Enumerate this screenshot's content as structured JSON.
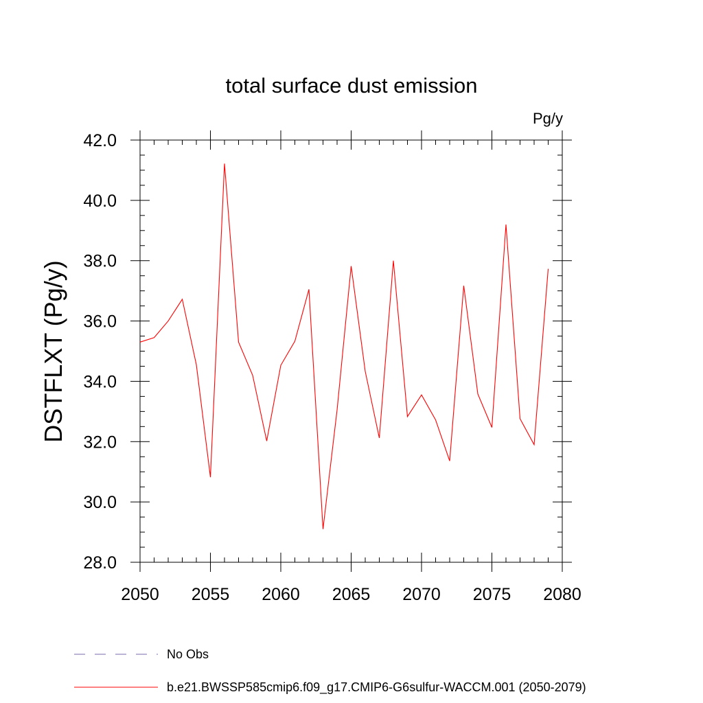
{
  "chart_data": {
    "type": "line",
    "title": "total surface dust emission",
    "units_label": "Pg/y",
    "ylabel": "DSTFLXT  (Pg/y)",
    "xlabel": "",
    "xlim": [
      2050,
      2080
    ],
    "ylim": [
      28.0,
      42.0
    ],
    "x_ticks": [
      "2050",
      "2055",
      "2060",
      "2065",
      "2070",
      "2075",
      "2080"
    ],
    "y_ticks": [
      "28.0",
      "30.0",
      "32.0",
      "34.0",
      "36.0",
      "38.0",
      "40.0",
      "42.0"
    ],
    "grid": false,
    "legend_position": "bottom",
    "x": [
      2050,
      2051,
      2052,
      2053,
      2054,
      2055,
      2056,
      2057,
      2058,
      2059,
      2060,
      2061,
      2062,
      2063,
      2064,
      2065,
      2066,
      2067,
      2068,
      2069,
      2070,
      2071,
      2072,
      2073,
      2074,
      2075,
      2076,
      2077,
      2078,
      2079
    ],
    "series": [
      {
        "name": "b.e21.BWSSP585cmip6.f09_g17.CMIP6-G6sulfur-WACCM.001 (2050-2079)",
        "color": "#ff0000",
        "style": "solid",
        "values": [
          35.3,
          35.45,
          36.0,
          36.72,
          34.55,
          30.82,
          41.22,
          35.3,
          34.2,
          32.02,
          34.53,
          35.33,
          37.05,
          29.1,
          33.05,
          37.82,
          34.33,
          32.12,
          38.0,
          32.83,
          33.55,
          32.72,
          31.36,
          37.17,
          33.58,
          32.47,
          39.2,
          32.76,
          31.9,
          37.73
        ]
      }
    ],
    "legend": [
      {
        "label": "No Obs",
        "color": "#7a6aa8",
        "style": "dashed"
      },
      {
        "label": "b.e21.BWSSP585cmip6.f09_g17.CMIP6-G6sulfur-WACCM.001 (2050-2079)",
        "color": "#ff0000",
        "style": "solid"
      }
    ]
  }
}
